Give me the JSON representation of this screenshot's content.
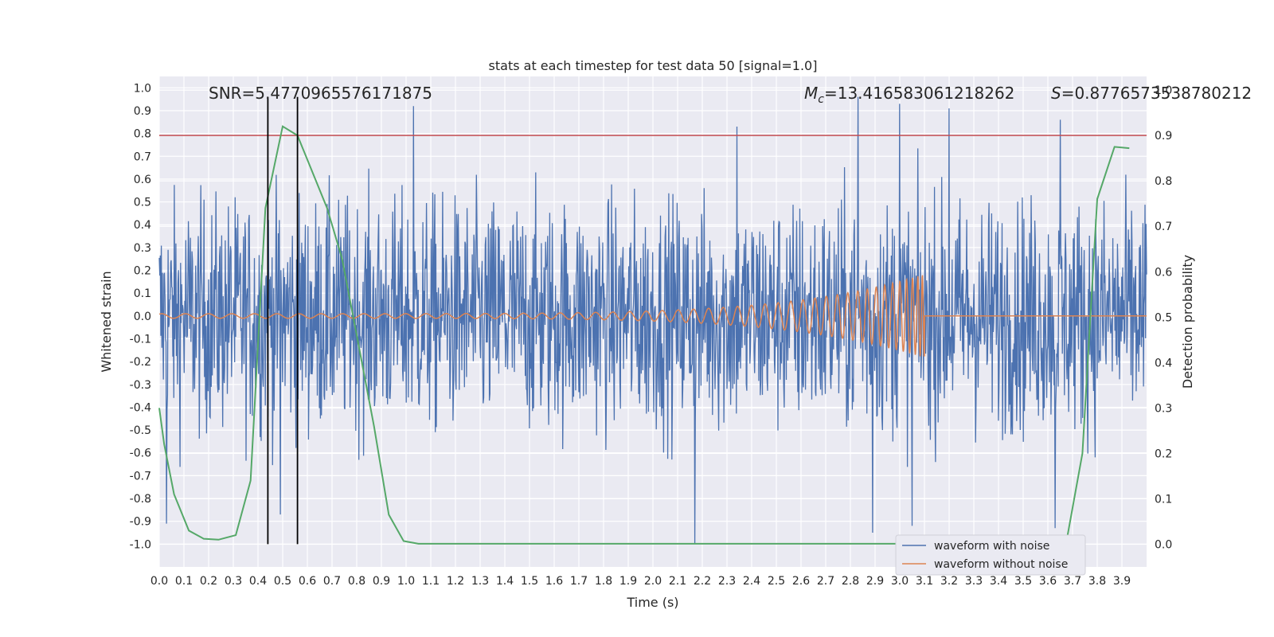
{
  "chart_data": {
    "type": "line",
    "title": "stats at each timestep for test data 50 [signal=1.0]",
    "xlabel": "Time (s)",
    "ylabel": "Whitened strain",
    "ylabel_right": "Detection probability",
    "xlim": [
      0.0,
      4.0
    ],
    "ylim": [
      -1.1,
      1.05
    ],
    "ylim_right": [
      -0.05,
      1.03
    ],
    "x_ticks": [
      "0.0",
      "0.1",
      "0.2",
      "0.3",
      "0.4",
      "0.5",
      "0.6",
      "0.7",
      "0.8",
      "0.9",
      "1.0",
      "1.1",
      "1.2",
      "1.3",
      "1.4",
      "1.5",
      "1.6",
      "1.7",
      "1.8",
      "1.9",
      "2.0",
      "2.1",
      "2.2",
      "2.3",
      "2.4",
      "2.5",
      "2.6",
      "2.7",
      "2.8",
      "2.9",
      "3.0",
      "3.1",
      "3.2",
      "3.3",
      "3.4",
      "3.5",
      "3.6",
      "3.7",
      "3.8",
      "3.9"
    ],
    "y_ticks": [
      "1.0",
      "0.9",
      "0.8",
      "0.7",
      "0.6",
      "0.5",
      "0.4",
      "0.3",
      "0.2",
      "0.1",
      "0.0",
      "-0.1",
      "-0.2",
      "-0.3",
      "-0.4",
      "-0.5",
      "-0.6",
      "-0.7",
      "-0.8",
      "-0.9",
      "-1.0"
    ],
    "y_right_ticks": [
      "1.0",
      "0.9",
      "0.8",
      "0.7",
      "0.6",
      "0.5",
      "0.4",
      "0.3",
      "0.2",
      "0.1",
      "0.0"
    ],
    "annotations": {
      "snr": "SNR=5.4770965576171875",
      "mc_symbol": "M",
      "mc_sub": "c",
      "mc_value": "=13.416583061218262",
      "s_symbol": "S",
      "s_value": "=0.8776573538780212"
    },
    "legend": {
      "placement": "lower-right",
      "entries": [
        "waveform with noise",
        "waveform without noise"
      ]
    },
    "series": [
      {
        "name": "waveform with noise",
        "kind": "noise",
        "color": "#4c72b0",
        "description_range": [
          -1.0,
          1.0
        ],
        "peaks": [
          {
            "x": 1.03,
            "y": 0.92
          },
          {
            "x": 2.34,
            "y": 0.83
          },
          {
            "x": 2.83,
            "y": 0.96
          },
          {
            "x": 3.0,
            "y": 0.93
          },
          {
            "x": 3.2,
            "y": 0.91
          },
          {
            "x": 3.65,
            "y": 0.86
          },
          {
            "x": 2.17,
            "y": -1.0
          },
          {
            "x": 2.89,
            "y": -0.95
          },
          {
            "x": 3.05,
            "y": -0.92
          },
          {
            "x": 0.49,
            "y": -0.87
          },
          {
            "x": 0.03,
            "y": -0.91
          },
          {
            "x": 3.63,
            "y": -0.93
          }
        ]
      },
      {
        "name": "waveform without noise",
        "kind": "chirp",
        "color": "#dd8452",
        "end_x": 3.1,
        "start_amplitude": 0.01,
        "end_amplitude": 0.19
      },
      {
        "name": "detection probability",
        "axis": "right",
        "color": "#55a868",
        "x": [
          0.0,
          0.02,
          0.06,
          0.12,
          0.18,
          0.24,
          0.31,
          0.37,
          0.43,
          0.5,
          0.56,
          0.62,
          0.68,
          0.74,
          0.8,
          0.87,
          0.93,
          0.99,
          1.05,
          1.2,
          1.4,
          1.6,
          1.8,
          2.0,
          2.2,
          2.4,
          2.6,
          2.8,
          3.0,
          3.2,
          3.4,
          3.6,
          3.68,
          3.74,
          3.8,
          3.87,
          3.93
        ],
        "y": [
          0.3,
          0.22,
          0.11,
          0.03,
          0.012,
          0.01,
          0.02,
          0.14,
          0.74,
          0.92,
          0.9,
          0.82,
          0.74,
          0.63,
          0.46,
          0.26,
          0.065,
          0.007,
          0.001,
          0.001,
          0.001,
          0.001,
          0.001,
          0.001,
          0.001,
          0.001,
          0.001,
          0.001,
          0.001,
          0.001,
          0.001,
          0.001,
          0.02,
          0.2,
          0.76,
          0.875,
          0.872
        ]
      }
    ],
    "hlines": [
      {
        "axis": "right",
        "y": 0.9,
        "color": "#c44e52"
      }
    ],
    "vlines": [
      {
        "x": 0.44,
        "color": "#000000"
      },
      {
        "x": 0.56,
        "color": "#000000"
      }
    ],
    "grid": true,
    "background": "#eaeaf2"
  }
}
